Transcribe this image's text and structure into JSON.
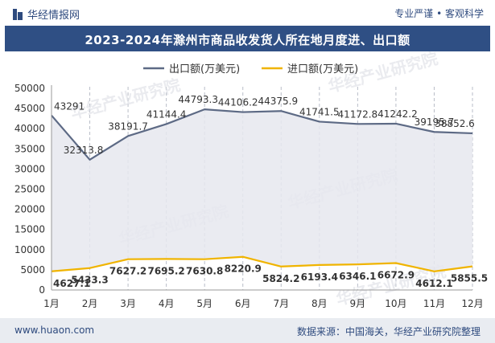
{
  "header": {
    "brand": "华经情报网",
    "brand_icon": "logo-icon",
    "tagline": "专业严谨 • 客观科学"
  },
  "footer": {
    "url": "www.huaon.com",
    "source": "数据来源：中国海关，华经产业研究院整理"
  },
  "watermark": "华经产业研究院",
  "colors": {
    "export_line": "#5d6a85",
    "import_line": "#f0b400",
    "title_bg": "#2f4f84",
    "text": "#2e4a7e"
  },
  "chart_data": {
    "type": "line",
    "title": "2023-2024年滁州市商品收发货人所在地月度进、出口额",
    "categories": [
      "1月",
      "2月",
      "3月",
      "4月",
      "5月",
      "6月",
      "7月",
      "8月",
      "9月",
      "10月",
      "11月",
      "12月"
    ],
    "series": [
      {
        "name": "出口额(万美元)",
        "values": [
          43291,
          32313.8,
          38191.7,
          41144.4,
          44793.3,
          44106.2,
          44375.9,
          41741.5,
          41172.8,
          41242.2,
          39195.7,
          38852.6
        ],
        "labels": [
          "43291",
          "32313.8",
          "38191.7",
          "41144.4",
          "44793.3",
          "44106.2",
          "44375.9",
          "41741.5",
          "41172.8",
          "41242.2",
          "39195.7",
          "38852.6"
        ]
      },
      {
        "name": "进口额(万美元)",
        "values": [
          4627.1,
          5433.3,
          7627.2,
          7695.2,
          7630.8,
          8220.9,
          5824.2,
          6193.4,
          6346.1,
          6672.9,
          4612.1,
          5855.5
        ],
        "labels": [
          "4627.1",
          "5433.3",
          "7627.2",
          "7695.2",
          "7630.8",
          "8220.9",
          "5824.2",
          "6193.4",
          "6346.1",
          "6672.9",
          "4612.1",
          "5855.5"
        ]
      }
    ],
    "ylim": [
      0,
      50000
    ],
    "yticks": [
      "0",
      "5000",
      "10000",
      "15000",
      "20000",
      "25000",
      "30000",
      "35000",
      "40000",
      "45000",
      "50000"
    ],
    "legend": "top"
  }
}
